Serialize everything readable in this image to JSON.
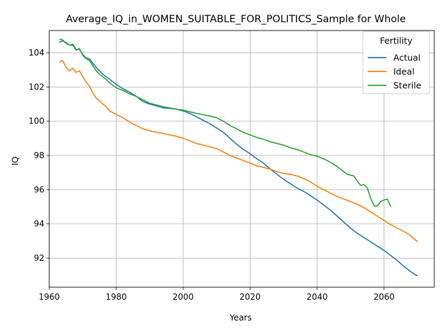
{
  "chart_data": {
    "type": "line",
    "title": "Average_IQ_in_WOMEN_SUITABLE_FOR_POLITICS_Sample for Whole",
    "xlabel": "Years",
    "ylabel": "IQ",
    "xlim": [
      1960,
      2075
    ],
    "ylim": [
      90.3,
      105.3
    ],
    "xticks": [
      1960,
      1980,
      2000,
      2020,
      2040,
      2060
    ],
    "yticks": [
      92,
      94,
      96,
      98,
      100,
      102,
      104
    ],
    "grid": true,
    "legend": {
      "title": "Fertility",
      "placement": "top-right"
    },
    "series": [
      {
        "name": "Actual",
        "color": "#1f77b4",
        "points": [
          [
            1963,
            104.6
          ],
          [
            1964,
            104.7
          ],
          [
            1965,
            104.6
          ],
          [
            1966,
            104.45
          ],
          [
            1967,
            104.5
          ],
          [
            1968,
            104.2
          ],
          [
            1969,
            104.2
          ],
          [
            1970,
            103.9
          ],
          [
            1971,
            103.7
          ],
          [
            1972,
            103.65
          ],
          [
            1973,
            103.4
          ],
          [
            1974,
            103.15
          ],
          [
            1975,
            102.95
          ],
          [
            1976,
            102.75
          ],
          [
            1977,
            102.6
          ],
          [
            1978,
            102.45
          ],
          [
            1980,
            102.15
          ],
          [
            1982,
            101.9
          ],
          [
            1984,
            101.7
          ],
          [
            1986,
            101.45
          ],
          [
            1988,
            101.15
          ],
          [
            1990,
            101.0
          ],
          [
            1992,
            100.9
          ],
          [
            1994,
            100.78
          ],
          [
            1996,
            100.75
          ],
          [
            1998,
            100.7
          ],
          [
            2000,
            100.6
          ],
          [
            2002,
            100.45
          ],
          [
            2004,
            100.25
          ],
          [
            2006,
            100.05
          ],
          [
            2008,
            99.85
          ],
          [
            2010,
            99.6
          ],
          [
            2012,
            99.35
          ],
          [
            2014,
            99.0
          ],
          [
            2016,
            98.65
          ],
          [
            2018,
            98.35
          ],
          [
            2020,
            98.1
          ],
          [
            2022,
            97.8
          ],
          [
            2024,
            97.55
          ],
          [
            2026,
            97.2
          ],
          [
            2028,
            96.9
          ],
          [
            2030,
            96.6
          ],
          [
            2032,
            96.35
          ],
          [
            2034,
            96.1
          ],
          [
            2036,
            95.9
          ],
          [
            2038,
            95.65
          ],
          [
            2040,
            95.4
          ],
          [
            2042,
            95.1
          ],
          [
            2044,
            94.8
          ],
          [
            2046,
            94.45
          ],
          [
            2048,
            94.1
          ],
          [
            2050,
            93.75
          ],
          [
            2052,
            93.45
          ],
          [
            2054,
            93.2
          ],
          [
            2056,
            92.95
          ],
          [
            2058,
            92.7
          ],
          [
            2060,
            92.45
          ],
          [
            2062,
            92.15
          ],
          [
            2064,
            91.85
          ],
          [
            2066,
            91.5
          ],
          [
            2068,
            91.2
          ],
          [
            2070,
            90.95
          ]
        ]
      },
      {
        "name": "Ideal",
        "color": "#ff7f0e",
        "points": [
          [
            1963,
            103.45
          ],
          [
            1964,
            103.55
          ],
          [
            1965,
            103.15
          ],
          [
            1966,
            102.95
          ],
          [
            1967,
            103.1
          ],
          [
            1968,
            102.85
          ],
          [
            1969,
            102.95
          ],
          [
            1970,
            102.6
          ],
          [
            1971,
            102.3
          ],
          [
            1972,
            102.05
          ],
          [
            1973,
            101.65
          ],
          [
            1974,
            101.35
          ],
          [
            1975,
            101.2
          ],
          [
            1976,
            101.0
          ],
          [
            1977,
            100.85
          ],
          [
            1978,
            100.6
          ],
          [
            1980,
            100.4
          ],
          [
            1982,
            100.2
          ],
          [
            1984,
            99.95
          ],
          [
            1986,
            99.75
          ],
          [
            1988,
            99.55
          ],
          [
            1990,
            99.45
          ],
          [
            1992,
            99.35
          ],
          [
            1994,
            99.28
          ],
          [
            1996,
            99.2
          ],
          [
            1998,
            99.12
          ],
          [
            2000,
            99.0
          ],
          [
            2002,
            98.85
          ],
          [
            2004,
            98.7
          ],
          [
            2006,
            98.6
          ],
          [
            2008,
            98.5
          ],
          [
            2010,
            98.4
          ],
          [
            2012,
            98.2
          ],
          [
            2014,
            98.0
          ],
          [
            2016,
            97.85
          ],
          [
            2018,
            97.7
          ],
          [
            2020,
            97.55
          ],
          [
            2022,
            97.4
          ],
          [
            2024,
            97.3
          ],
          [
            2026,
            97.2
          ],
          [
            2028,
            97.05
          ],
          [
            2030,
            96.95
          ],
          [
            2032,
            96.9
          ],
          [
            2034,
            96.8
          ],
          [
            2036,
            96.65
          ],
          [
            2038,
            96.45
          ],
          [
            2040,
            96.2
          ],
          [
            2042,
            96.0
          ],
          [
            2044,
            95.8
          ],
          [
            2046,
            95.6
          ],
          [
            2048,
            95.45
          ],
          [
            2050,
            95.3
          ],
          [
            2052,
            95.15
          ],
          [
            2054,
            94.95
          ],
          [
            2056,
            94.7
          ],
          [
            2058,
            94.45
          ],
          [
            2060,
            94.2
          ],
          [
            2062,
            93.95
          ],
          [
            2064,
            93.75
          ],
          [
            2066,
            93.55
          ],
          [
            2068,
            93.3
          ],
          [
            2070,
            92.95
          ]
        ]
      },
      {
        "name": "Sterile",
        "color": "#2ca02c",
        "points": [
          [
            1963,
            104.8
          ],
          [
            1964,
            104.75
          ],
          [
            1965,
            104.55
          ],
          [
            1966,
            104.45
          ],
          [
            1967,
            104.45
          ],
          [
            1968,
            104.15
          ],
          [
            1969,
            104.25
          ],
          [
            1970,
            103.85
          ],
          [
            1971,
            103.65
          ],
          [
            1972,
            103.55
          ],
          [
            1973,
            103.25
          ],
          [
            1974,
            102.95
          ],
          [
            1975,
            102.75
          ],
          [
            1976,
            102.6
          ],
          [
            1977,
            102.45
          ],
          [
            1978,
            102.25
          ],
          [
            1980,
            101.95
          ],
          [
            1982,
            101.8
          ],
          [
            1984,
            101.6
          ],
          [
            1986,
            101.45
          ],
          [
            1988,
            101.25
          ],
          [
            1990,
            101.05
          ],
          [
            1992,
            100.95
          ],
          [
            1994,
            100.85
          ],
          [
            1996,
            100.78
          ],
          [
            1998,
            100.7
          ],
          [
            2000,
            100.65
          ],
          [
            2002,
            100.55
          ],
          [
            2004,
            100.45
          ],
          [
            2006,
            100.38
          ],
          [
            2008,
            100.3
          ],
          [
            2010,
            100.2
          ],
          [
            2012,
            100.0
          ],
          [
            2014,
            99.75
          ],
          [
            2016,
            99.55
          ],
          [
            2018,
            99.35
          ],
          [
            2020,
            99.2
          ],
          [
            2022,
            99.05
          ],
          [
            2024,
            98.95
          ],
          [
            2026,
            98.8
          ],
          [
            2028,
            98.7
          ],
          [
            2030,
            98.6
          ],
          [
            2032,
            98.45
          ],
          [
            2034,
            98.35
          ],
          [
            2036,
            98.2
          ],
          [
            2038,
            98.05
          ],
          [
            2040,
            97.95
          ],
          [
            2042,
            97.8
          ],
          [
            2044,
            97.6
          ],
          [
            2046,
            97.35
          ],
          [
            2048,
            97.05
          ],
          [
            2049,
            96.9
          ],
          [
            2050,
            96.85
          ],
          [
            2051,
            96.8
          ],
          [
            2052,
            96.5
          ],
          [
            2053,
            96.25
          ],
          [
            2054,
            96.3
          ],
          [
            2055,
            96.1
          ],
          [
            2056,
            95.5
          ],
          [
            2057,
            95.05
          ],
          [
            2058,
            95.05
          ],
          [
            2059,
            95.3
          ],
          [
            2060,
            95.4
          ],
          [
            2061,
            95.45
          ],
          [
            2062,
            95.0
          ]
        ]
      }
    ]
  }
}
